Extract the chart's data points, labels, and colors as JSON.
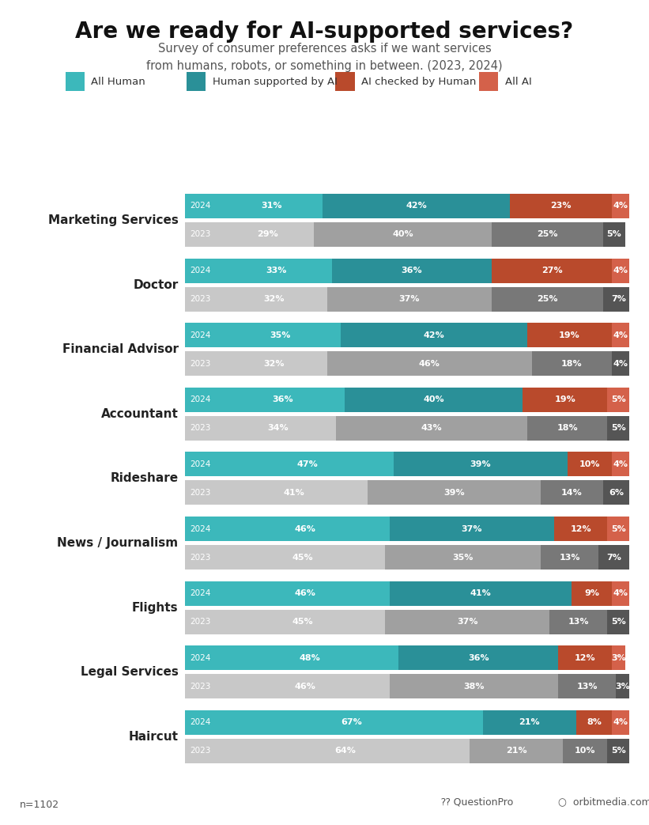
{
  "title": "Are we ready for AI-supported services?",
  "subtitle": "Survey of consumer preferences asks if we want services\nfrom humans, robots, or something in between. (2023, 2024)",
  "legend_labels": [
    "All Human",
    "Human supported by AI",
    "AI checked by Human",
    "All AI"
  ],
  "colors_2024": [
    "#3CB8BB",
    "#2A9098",
    "#B94A2C",
    "#D4614A"
  ],
  "colors_2023": [
    "#C8C8C8",
    "#A0A0A0",
    "#787878",
    "#555555"
  ],
  "categories": [
    "Marketing Services",
    "Doctor",
    "Financial Advisor",
    "Accountant",
    "Rideshare",
    "News / Journalism",
    "Flights",
    "Legal Services",
    "Haircut"
  ],
  "data_2024": [
    [
      31,
      42,
      23,
      4
    ],
    [
      33,
      36,
      27,
      4
    ],
    [
      35,
      42,
      19,
      4
    ],
    [
      36,
      40,
      19,
      5
    ],
    [
      47,
      39,
      10,
      4
    ],
    [
      46,
      37,
      12,
      5
    ],
    [
      46,
      41,
      9,
      4
    ],
    [
      48,
      36,
      12,
      3
    ],
    [
      67,
      21,
      8,
      4
    ]
  ],
  "data_2023": [
    [
      29,
      40,
      25,
      5
    ],
    [
      32,
      37,
      25,
      7
    ],
    [
      32,
      46,
      18,
      4
    ],
    [
      34,
      43,
      18,
      5
    ],
    [
      41,
      39,
      14,
      6
    ],
    [
      45,
      35,
      13,
      7
    ],
    [
      45,
      37,
      13,
      5
    ],
    [
      46,
      38,
      13,
      3
    ],
    [
      64,
      21,
      10,
      5
    ]
  ],
  "bar_height": 0.38,
  "background_color": "#FFFFFF",
  "legend_bg_color": "#EFEFEF",
  "footnote": "n=1102"
}
